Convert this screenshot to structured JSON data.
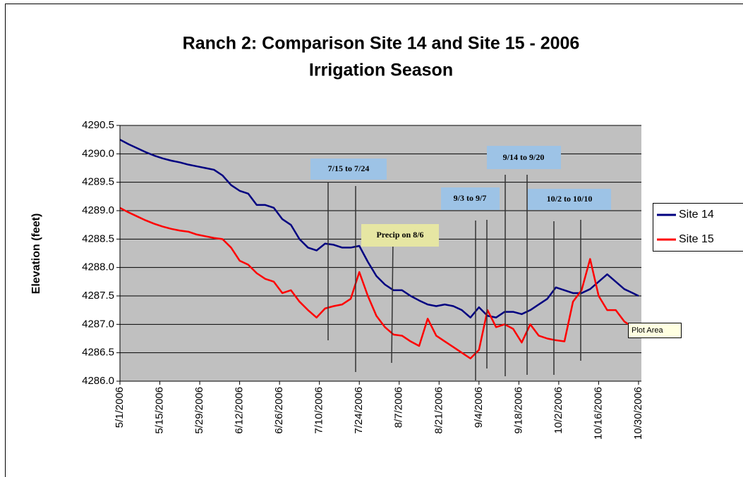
{
  "chart_data": {
    "type": "line",
    "title": [
      "Ranch 2:  Comparison Site 14 and Site 15 - 2006",
      "Irrigation Season"
    ],
    "y_label": "Elevation (feet)",
    "x": [
      "5/1/2006",
      "5/4/2006",
      "5/7/2006",
      "5/10/2006",
      "5/13/2006",
      "5/16/2006",
      "5/19/2006",
      "5/22/2006",
      "5/25/2006",
      "5/28/2006",
      "5/31/2006",
      "6/3/2006",
      "6/6/2006",
      "6/9/2006",
      "6/12/2006",
      "6/15/2006",
      "6/18/2006",
      "6/21/2006",
      "6/24/2006",
      "6/27/2006",
      "6/30/2006",
      "7/3/2006",
      "7/6/2006",
      "7/9/2006",
      "7/12/2006",
      "7/15/2006",
      "7/18/2006",
      "7/21/2006",
      "7/24/2006",
      "7/27/2006",
      "7/30/2006",
      "8/2/2006",
      "8/5/2006",
      "8/8/2006",
      "8/11/2006",
      "8/14/2006",
      "8/17/2006",
      "8/20/2006",
      "8/23/2006",
      "8/26/2006",
      "8/29/2006",
      "9/1/2006",
      "9/4/2006",
      "9/7/2006",
      "9/10/2006",
      "9/13/2006",
      "9/16/2006",
      "9/19/2006",
      "9/22/2006",
      "9/25/2006",
      "9/28/2006",
      "10/1/2006",
      "10/4/2006",
      "10/7/2006",
      "10/10/2006",
      "10/13/2006",
      "10/16/2006",
      "10/19/2006",
      "10/22/2006",
      "10/25/2006",
      "10/28/2006",
      "10/30/2006"
    ],
    "series": [
      {
        "name": "Site 14",
        "color": "#000080",
        "values": [
          4290.25,
          4290.17,
          4290.1,
          4290.03,
          4289.97,
          4289.92,
          4289.88,
          4289.85,
          4289.81,
          4289.78,
          4289.75,
          4289.72,
          4289.62,
          4289.45,
          4289.35,
          4289.3,
          4289.1,
          4289.1,
          4289.05,
          4288.85,
          4288.75,
          4288.5,
          4288.35,
          4288.3,
          4288.42,
          4288.4,
          4288.35,
          4288.35,
          4288.38,
          4288.1,
          4287.85,
          4287.7,
          4287.6,
          4287.6,
          4287.5,
          4287.42,
          4287.35,
          4287.32,
          4287.35,
          4287.32,
          4287.25,
          4287.12,
          4287.3,
          4287.15,
          4287.12,
          4287.22,
          4287.22,
          4287.18,
          4287.25,
          4287.35,
          4287.45,
          4287.65,
          4287.6,
          4287.55,
          4287.55,
          4287.62,
          4287.75,
          4287.88,
          4287.75,
          4287.62,
          4287.55,
          4287.5
        ]
      },
      {
        "name": "Site 15",
        "color": "#ff0000",
        "values": [
          4289.05,
          4288.97,
          4288.9,
          4288.83,
          4288.77,
          4288.72,
          4288.68,
          4288.65,
          4288.63,
          4288.58,
          4288.55,
          4288.52,
          4288.5,
          4288.35,
          4288.12,
          4288.05,
          4287.9,
          4287.8,
          4287.75,
          4287.55,
          4287.6,
          4287.4,
          4287.25,
          4287.12,
          4287.28,
          4287.32,
          4287.35,
          4287.45,
          4287.92,
          4287.5,
          4287.15,
          4286.95,
          4286.82,
          4286.8,
          4286.7,
          4286.62,
          4287.1,
          4286.8,
          4286.7,
          4286.6,
          4286.5,
          4286.4,
          4286.55,
          4287.25,
          4286.95,
          4287.0,
          4286.92,
          4286.68,
          4287.0,
          4286.8,
          4286.75,
          4286.72,
          4286.7,
          4287.4,
          4287.6,
          4288.15,
          4287.5,
          4287.25,
          4287.25,
          4287.05,
          4286.95,
          4286.9
        ]
      }
    ],
    "xlim": [
      "5/1/2006",
      "10/31/2006"
    ],
    "xticks": [
      "5/1/2006",
      "5/15/2006",
      "5/29/2006",
      "6/12/2006",
      "6/26/2006",
      "7/10/2006",
      "7/24/2006",
      "8/7/2006",
      "8/21/2006",
      "9/4/2006",
      "9/18/2006",
      "10/2/2006",
      "10/16/2006",
      "10/30/2006"
    ],
    "ylim": [
      4286,
      4290.5
    ],
    "yticks": [
      {
        "value": 4286,
        "label": "4286.0"
      },
      4286.5,
      {
        "value": 4287,
        "label": "4287.0"
      },
      4287.5,
      {
        "value": 4288,
        "label": "4288.0"
      },
      4288.5,
      {
        "value": 4289,
        "label": "4289.0"
      },
      4289.5,
      {
        "value": 4290,
        "label": "4290.0"
      },
      4290.5
    ],
    "grid": true,
    "legend": "right",
    "annotations": [
      "7/15 to 7/24",
      "9/14 to 9/20",
      "9/3 to 9/7",
      "10/2 to 10/10",
      "Precip on 8/6"
    ],
    "tooltip": "Plot Area"
  }
}
